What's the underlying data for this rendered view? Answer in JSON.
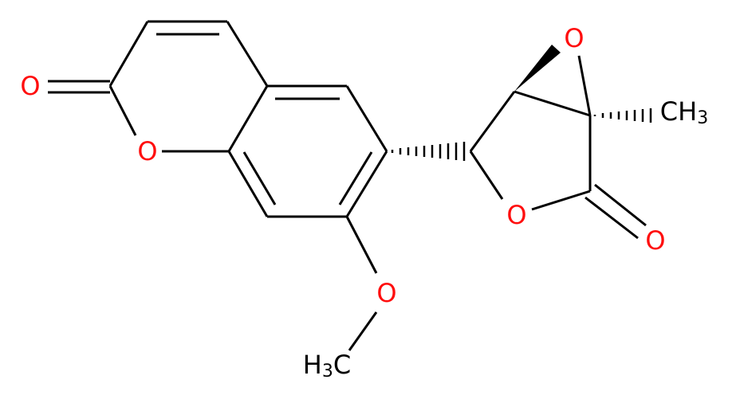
{
  "atoms": [
    {
      "parts": [
        "O"
      ]
    },
    {
      "parts": [
        "O"
      ]
    },
    {
      "parts": [
        "O"
      ]
    },
    {
      "parts": [
        "CH",
        "3"
      ]
    },
    {
      "parts": [
        "O"
      ]
    },
    {
      "parts": [
        "O"
      ]
    },
    {
      "parts": [
        "O"
      ]
    },
    {
      "parts": [
        "H",
        "3",
        "C"
      ]
    }
  ]
}
